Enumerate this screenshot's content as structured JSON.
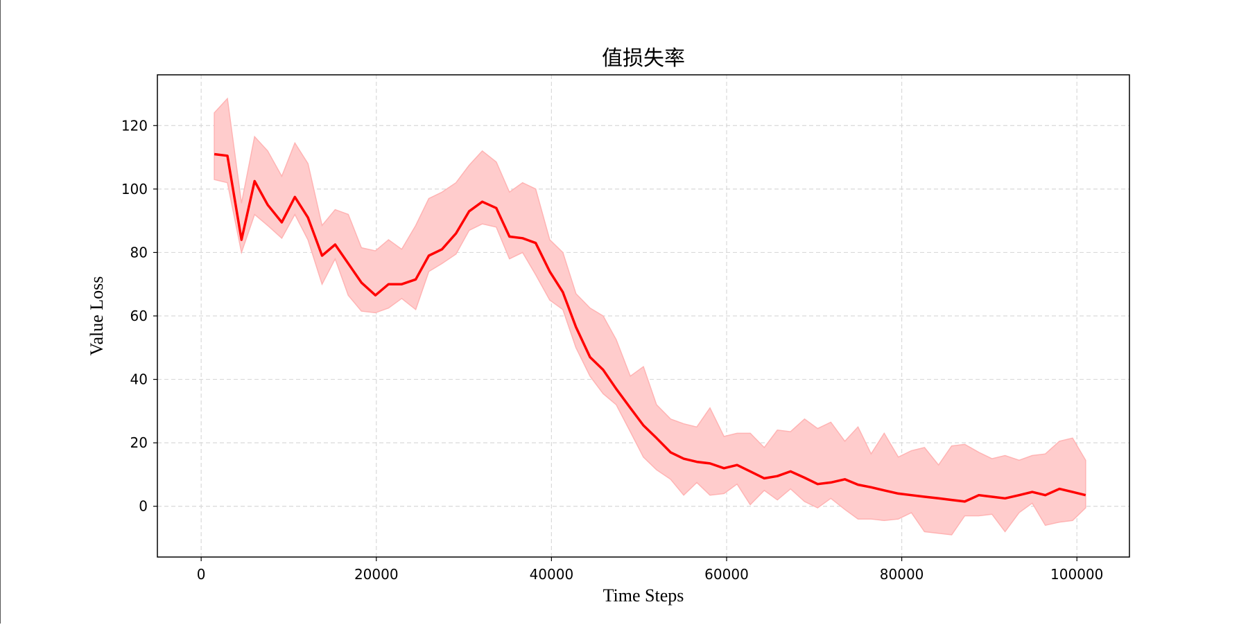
{
  "chart_data": {
    "type": "line",
    "title": "值损失率",
    "xlabel": "Time Steps",
    "ylabel": "Value Loss",
    "xlim": [
      -5000,
      106000
    ],
    "ylim": [
      -16,
      136
    ],
    "xticks": [
      0,
      20000,
      40000,
      60000,
      80000,
      100000
    ],
    "yticks": [
      0,
      20,
      40,
      60,
      80,
      100,
      120
    ],
    "grid": true,
    "line_color": "#ff0000",
    "band_color": "#ffcccc",
    "band_edge_color": "#ffb3b3",
    "series": [
      {
        "x": [
          1500,
          3000,
          4600,
          6100,
          7600,
          9200,
          10700,
          12200,
          13800,
          15300,
          16800,
          18300,
          19900,
          21400,
          22900,
          24500,
          26000,
          27500,
          29100,
          30600,
          32100,
          33700,
          35200,
          36700,
          38200,
          39800,
          41300,
          42800,
          44400,
          45900,
          47400,
          49000,
          50500,
          52000,
          53600,
          55100,
          56600,
          58100,
          59700,
          61200,
          62700,
          64300,
          65800,
          67300,
          68900,
          70400,
          71900,
          73500,
          75000,
          76500,
          78000,
          79600,
          81100,
          82600,
          84200,
          85700,
          87200,
          88800,
          90300,
          91800,
          93400,
          94900,
          96400,
          98000,
          99500,
          101000
        ],
        "mean": [
          111,
          110.5,
          84,
          102.5,
          95,
          89.5,
          97.5,
          91,
          79,
          82.5,
          76.5,
          70.5,
          66.5,
          70,
          70,
          71.5,
          79,
          81,
          86,
          93,
          96,
          94,
          85,
          84.5,
          83,
          74,
          67.5,
          56.5,
          47,
          43,
          37,
          31,
          25.5,
          21.5,
          17,
          15,
          14,
          13.5,
          12,
          13,
          11,
          8.8,
          9.5,
          11,
          9,
          7,
          7.5,
          8.5,
          6.8,
          6,
          5,
          4,
          3.5,
          3,
          2.5,
          2,
          1.5,
          3.5,
          3,
          2.5,
          3.5,
          4.5,
          3.5,
          5.5,
          4.5,
          3.5
        ],
        "upper": [
          124,
          128.5,
          95.5,
          116.5,
          112,
          104,
          114.5,
          108,
          88.5,
          93.5,
          92,
          81.5,
          80.5,
          84,
          81,
          88.5,
          97,
          99,
          102,
          107.5,
          112,
          108.5,
          99,
          102,
          100,
          84,
          80,
          67,
          62.5,
          60,
          52.5,
          41,
          44,
          32,
          27.5,
          26,
          25,
          31,
          22,
          23,
          23,
          18.5,
          24,
          23.5,
          27.5,
          24.5,
          26.5,
          20.5,
          25,
          16.5,
          23,
          15.5,
          17.5,
          18.5,
          13,
          19,
          19.5,
          17,
          15,
          16,
          14.5,
          16,
          16.5,
          20.5,
          21.5,
          14.5
        ],
        "lower": [
          103,
          102,
          80,
          92,
          88.5,
          84.5,
          92,
          84,
          70,
          78,
          66.5,
          61.5,
          61,
          62.5,
          65.5,
          62,
          74,
          76.5,
          79.5,
          87,
          89,
          88,
          78,
          80,
          73,
          65,
          62,
          50,
          41,
          35.5,
          32,
          23.5,
          15.5,
          11.5,
          8.5,
          3.5,
          7.5,
          3.5,
          4,
          7,
          0.5,
          5,
          2,
          5.5,
          1.5,
          -0.5,
          2.5,
          -1,
          -4,
          -4,
          -4.5,
          -4,
          -2,
          -8,
          -8.5,
          -9,
          -3,
          -3,
          -2.5,
          -8,
          -2,
          1,
          -6,
          -5,
          -4.5,
          -0.5
        ]
      }
    ]
  }
}
